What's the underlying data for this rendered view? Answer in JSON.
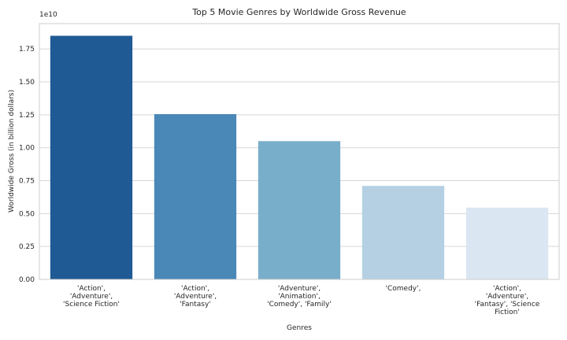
{
  "chart_data": {
    "type": "bar",
    "title": "Top 5 Movie Genres by Worldwide Gross Revenue",
    "xlabel": "Genres",
    "ylabel": "Worldwide Gross (in billion dollars)",
    "y_offset_text": "1e10",
    "categories": [
      [
        "'Action',",
        "'Adventure',",
        "'Science Fiction'"
      ],
      [
        "'Action',",
        "'Adventure',",
        "'Fantasy'"
      ],
      [
        "'Adventure',",
        "'Animation',",
        "'Comedy', 'Family'"
      ],
      [
        "'Comedy',"
      ],
      [
        "'Action',",
        "'Adventure',",
        "'Fantasy', 'Science",
        "Fiction'"
      ]
    ],
    "values": [
      18500000000,
      12550000000,
      10500000000,
      7100000000,
      5450000000
    ],
    "colors": [
      "#1f5a94",
      "#4a88b8",
      "#79aecb",
      "#b5d0e3",
      "#dae6f2"
    ],
    "yticks": [
      0,
      2500000000,
      5000000000,
      7500000000,
      10000000000,
      12500000000,
      15000000000,
      17500000000
    ],
    "ytick_labels": [
      "0.00",
      "0.25",
      "0.50",
      "0.75",
      "1.00",
      "1.25",
      "1.50",
      "1.75"
    ],
    "ylim": [
      0,
      19425000000
    ],
    "grid": true
  }
}
